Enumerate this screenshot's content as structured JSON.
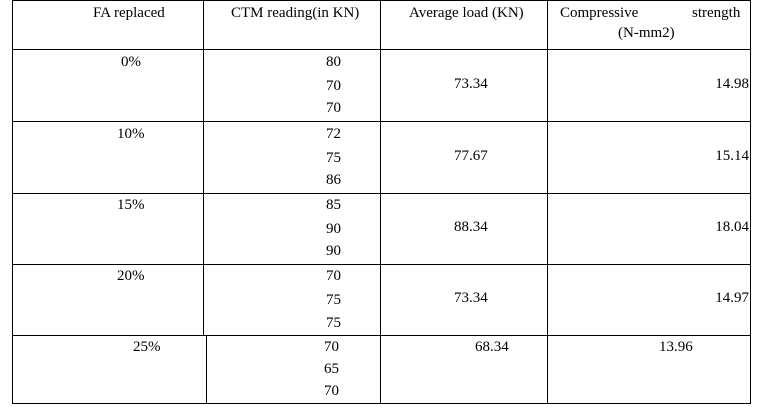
{
  "table": {
    "headers": {
      "fa_replaced": "FA replaced",
      "ctm_reading": "CTM reading(in KN)",
      "average_load": "Average load (KN)",
      "compressive_strength_line1_left": "Compressive",
      "compressive_strength_line1_right": "strength",
      "compressive_strength_line2": "(N-mm2)"
    },
    "rows": [
      {
        "fa": "0%",
        "readings": [
          "80",
          "70",
          "70"
        ],
        "average": "73.34",
        "strength": "14.98"
      },
      {
        "fa": "10%",
        "readings": [
          "72",
          "75",
          "86"
        ],
        "average": "77.67",
        "strength": "15.14"
      },
      {
        "fa": "15%",
        "readings": [
          "85",
          "90",
          "90"
        ],
        "average": "88.34",
        "strength": "18.04"
      },
      {
        "fa": "20%",
        "readings": [
          "70",
          "75",
          "75"
        ],
        "average": "73.34",
        "strength": "14.97"
      },
      {
        "fa": "25%",
        "readings": [
          "70",
          "65",
          "70"
        ],
        "average": "68.34",
        "strength": "13.96"
      }
    ]
  }
}
